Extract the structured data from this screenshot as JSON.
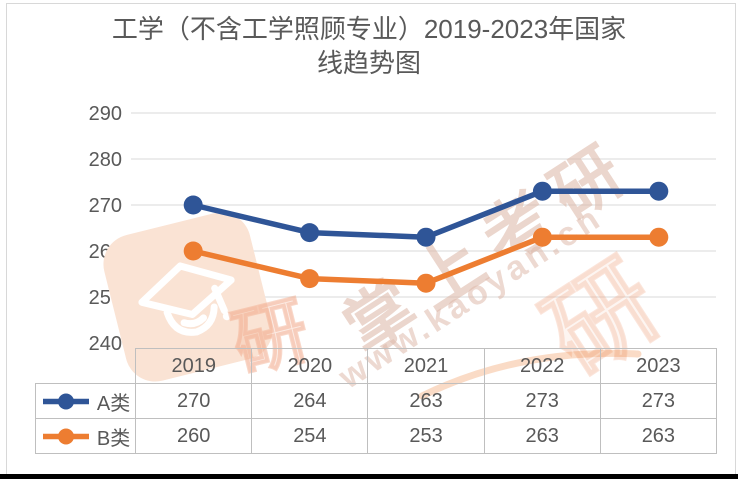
{
  "title": {
    "full": "工学（不含工学照顾专业）2019-2023年国家线趋势图",
    "lines": [
      "工学（不含工学照顾专业）2019-2023年国家",
      "线趋势图"
    ],
    "color": "#595959"
  },
  "chart_data": {
    "type": "line",
    "x": [
      "2019",
      "2020",
      "2021",
      "2022",
      "2023"
    ],
    "series": [
      {
        "name": "A类",
        "values": [
          270,
          264,
          263,
          273,
          273
        ],
        "color": "#2f5597"
      },
      {
        "name": "B类",
        "values": [
          260,
          254,
          253,
          263,
          263
        ],
        "color": "#ed7d31"
      }
    ],
    "title": "工学（不含工学照顾专业）2019-2023年国家线趋势图",
    "xlabel": "",
    "ylabel": "",
    "ylim": [
      240,
      290
    ],
    "yticks": [
      240,
      250,
      260,
      270,
      280,
      290
    ],
    "grid": true,
    "gridline_color": "#ececec",
    "axis_label_color": "#595959",
    "legend_position": "data-table-left",
    "marker": "circle"
  },
  "watermark": {
    "brand_text": "掌上考研",
    "url_text": "www.kaoyan.cn",
    "partial_char": "研",
    "logo_icon": "graduation-cap-icon",
    "tint": "#f2a989"
  },
  "frame": {
    "border_color": "#d8d8d8",
    "bottom_bar_color": "#000000"
  }
}
